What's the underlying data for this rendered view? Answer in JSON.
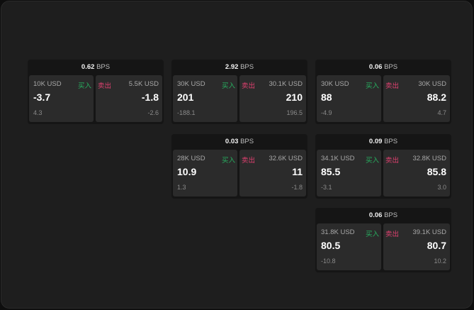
{
  "unit": "BPS",
  "buy_label": "买入",
  "sell_label": "卖出",
  "colors": {
    "buy": "#27b060",
    "sell": "#e04070"
  },
  "cards": [
    {
      "spread": "0.62",
      "buy": {
        "size": "10K USD",
        "price": "-3.7",
        "change": "4.3"
      },
      "sell": {
        "size": "5.5K USD",
        "price": "-1.8",
        "change": "-2.6"
      }
    },
    {
      "spread": "2.92",
      "buy": {
        "size": "30K USD",
        "price": "201",
        "change": "-188.1"
      },
      "sell": {
        "size": "30.1K USD",
        "price": "210",
        "change": "196.5"
      }
    },
    {
      "spread": "0.06",
      "buy": {
        "size": "30K USD",
        "price": "88",
        "change": "-4.9"
      },
      "sell": {
        "size": "30K USD",
        "price": "88.2",
        "change": "4.7"
      }
    },
    {
      "spread": "0.03",
      "buy": {
        "size": "28K USD",
        "price": "10.9",
        "change": "1.3"
      },
      "sell": {
        "size": "32.6K USD",
        "price": "11",
        "change": "-1.8"
      }
    },
    {
      "spread": "0.09",
      "buy": {
        "size": "34.1K USD",
        "price": "85.5",
        "change": "-3.1"
      },
      "sell": {
        "size": "32.8K USD",
        "price": "85.8",
        "change": "3.0"
      }
    },
    {
      "spread": "0.06",
      "buy": {
        "size": "31.8K USD",
        "price": "80.5",
        "change": "-10.8"
      },
      "sell": {
        "size": "39.1K USD",
        "price": "80.7",
        "change": "10.2"
      }
    }
  ]
}
